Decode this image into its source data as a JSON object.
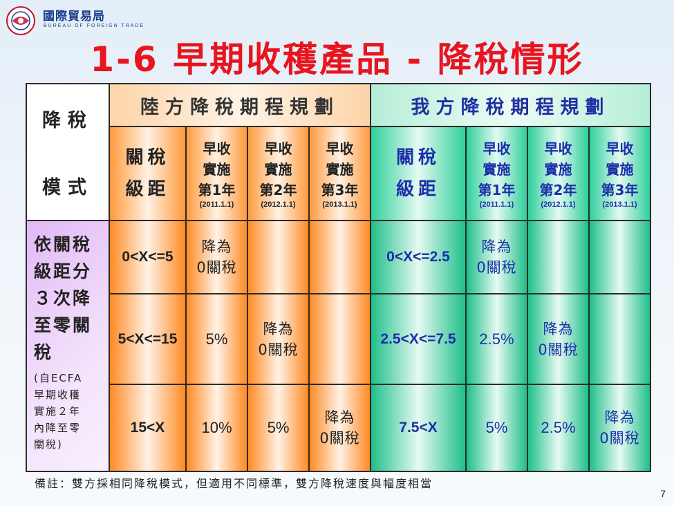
{
  "header": {
    "org_name_zh": "國際貿易局",
    "org_name_en": "BUREAU OF FOREIGN TRADE",
    "title": "1-6 早期收穫產品 - 降稅情形",
    "logo": "bureau-seal-icon"
  },
  "table": {
    "mode_header_line1": "降稅",
    "mode_header_line2": "模式",
    "cn_header": "陸方降稅期程規劃",
    "tw_header": "我方降稅期程規劃",
    "tiers_line1": "關稅",
    "tiers_line2": "級距",
    "early": [
      "早收",
      "實施"
    ],
    "years": [
      "第1年",
      "第2年",
      "第3年"
    ],
    "dates": [
      "(2011.1.1)",
      "(2012.1.1)",
      "(2013.1.1)"
    ],
    "description_main": [
      "依關稅",
      "級距分",
      "３次降",
      "至零關",
      "稅"
    ],
    "description_note": [
      "(自ECFA",
      "早期收穫",
      "實施２年",
      "內降至零",
      "關稅)"
    ],
    "zero_line1": "降為",
    "zero_line2": "0關稅",
    "rows": [
      {
        "cn_range": "0<X<=5",
        "cn": [
          "ZERO",
          "",
          ""
        ],
        "tw_range": "0<X<=2.5",
        "tw": [
          "ZERO",
          "",
          ""
        ]
      },
      {
        "cn_range": "5<X<=15",
        "cn": [
          "5%",
          "ZERO",
          ""
        ],
        "tw_range": "2.5<X<=7.5",
        "tw": [
          "2.5%",
          "ZERO",
          ""
        ]
      },
      {
        "cn_range": "15<X",
        "cn": [
          "10%",
          "5%",
          "ZERO"
        ],
        "tw_range": "7.5<X",
        "tw": [
          "5%",
          "2.5%",
          "ZERO"
        ]
      }
    ]
  },
  "footnote": "備註：雙方採相同降稅模式，但適用不同標準，雙方降稅速度與幅度相當",
  "page_number": "7",
  "colors": {
    "title": "#e8141e",
    "china_side": "#ff8a24",
    "taiwan_side": "#1fbf8a",
    "taiwan_text": "#1e2ea8",
    "mode_column": "#e2b8f6"
  }
}
